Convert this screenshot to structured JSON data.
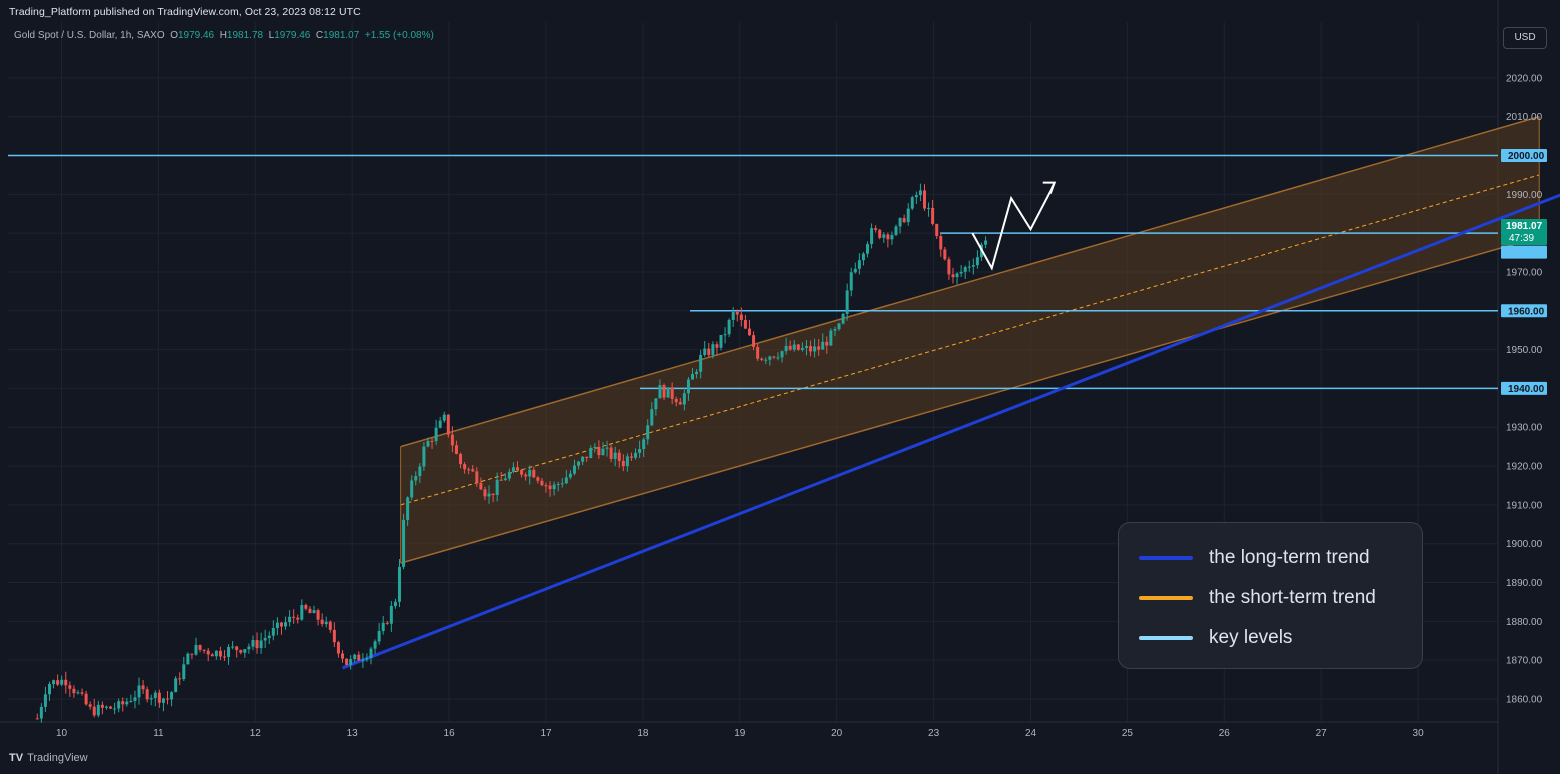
{
  "header": {
    "attribution": "Trading_Platform published on TradingView.com, Oct 23, 2023 08:12 UTC",
    "symbol": "Gold Spot / U.S. Dollar, 1h, SAXO",
    "open_label": "O",
    "open": "1979.46",
    "high_label": "H",
    "high": "1981.78",
    "low_label": "L",
    "low": "1979.46",
    "close_label": "C",
    "close": "1981.07",
    "change": "+1.55 (+0.08%)",
    "currency": "USD"
  },
  "footer": {
    "brand": "TradingView",
    "logo_glyph": "TV"
  },
  "price_badge": {
    "price": "1981.07",
    "countdown": "47:39"
  },
  "overlay_legend": [
    {
      "label": "the long-term trend",
      "color": "#1f3fd6"
    },
    {
      "label": "the short-term trend",
      "color": "#f5a623"
    },
    {
      "label": "key levels",
      "color": "#8fd9ff"
    }
  ],
  "colors": {
    "background": "#131722",
    "grid": "#1f2330",
    "up": "#26a69a",
    "down": "#ef5350",
    "channel_fill": "#5a3d1f",
    "channel_line": "#a0682b",
    "key_level": "#5fc4f5",
    "trend": "#1f3fd6"
  },
  "chart_data": {
    "type": "candlestick",
    "instrument": "Gold Spot / U.S. Dollar",
    "timeframe": "1h",
    "ylim": [
      1853,
      2028
    ],
    "y_ticks": [
      1860,
      1870,
      1880,
      1890,
      1900,
      1910,
      1920,
      1930,
      1940,
      1950,
      1960,
      1970,
      1980,
      1990,
      2000,
      2010,
      2020
    ],
    "x_ticks": [
      "10",
      "11",
      "12",
      "13",
      "16",
      "17",
      "18",
      "19",
      "20",
      "23",
      "24",
      "25",
      "26",
      "27",
      "30"
    ],
    "x_range_days": [
      9.65,
      30.9
    ],
    "key_levels": [
      2000.0,
      1980.0,
      1960.0,
      1940.0
    ],
    "price_path": [
      [
        9.75,
        1855
      ],
      [
        9.85,
        1864
      ],
      [
        10.05,
        1865
      ],
      [
        10.3,
        1857
      ],
      [
        10.6,
        1858
      ],
      [
        10.8,
        1862
      ],
      [
        11.1,
        1860
      ],
      [
        11.35,
        1873
      ],
      [
        11.6,
        1872
      ],
      [
        12.0,
        1874
      ],
      [
        12.5,
        1883
      ],
      [
        12.7,
        1880
      ],
      [
        12.95,
        1869
      ],
      [
        13.15,
        1872
      ],
      [
        13.3,
        1877
      ],
      [
        13.45,
        1886
      ],
      [
        13.55,
        1910
      ],
      [
        13.75,
        1925
      ],
      [
        13.95,
        1932
      ],
      [
        14.1,
        1921
      ],
      [
        14.3,
        1917
      ],
      [
        14.4,
        1912
      ],
      [
        14.6,
        1918
      ],
      [
        14.85,
        1919
      ],
      [
        15.05,
        1914
      ],
      [
        15.25,
        1918
      ],
      [
        15.5,
        1925
      ],
      [
        15.8,
        1921
      ],
      [
        16.0,
        1927
      ],
      [
        16.15,
        1940
      ],
      [
        16.4,
        1937
      ],
      [
        16.6,
        1948
      ],
      [
        16.8,
        1952
      ],
      [
        16.95,
        1960
      ],
      [
        17.2,
        1948
      ],
      [
        17.5,
        1950
      ],
      [
        17.8,
        1950
      ],
      [
        18.05,
        1956
      ],
      [
        18.15,
        1970
      ],
      [
        18.35,
        1980
      ],
      [
        18.6,
        1980
      ],
      [
        18.85,
        1991
      ],
      [
        18.95,
        1985
      ],
      [
        19.05,
        1977
      ],
      [
        19.2,
        1968
      ],
      [
        19.45,
        1974
      ],
      [
        19.55,
        1980
      ]
    ],
    "long_term_trend": {
      "start": [
        12.9,
        1868
      ],
      "end": [
        25.9,
        1994
      ]
    },
    "short_term_channel": {
      "upper": [
        [
          13.5,
          1925
        ],
        [
          25.25,
          2010
        ]
      ],
      "lower": [
        [
          13.5,
          1895
        ],
        [
          25.25,
          1979
        ]
      ],
      "mid": [
        [
          13.5,
          1910
        ],
        [
          25.25,
          1995
        ]
      ]
    },
    "projection": [
      [
        19.4,
        1980
      ],
      [
        19.6,
        1971
      ],
      [
        19.8,
        1989
      ],
      [
        20.0,
        1981
      ],
      [
        20.25,
        1993
      ]
    ]
  }
}
